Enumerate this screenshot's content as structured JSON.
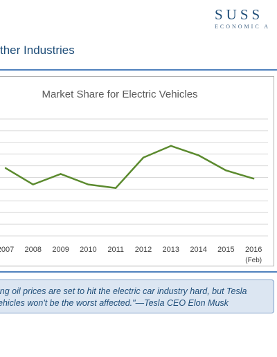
{
  "header": {
    "brand_name": "SUSS",
    "brand_sub": "ECONOMIC A",
    "title": "ther Industries"
  },
  "chart_data": {
    "type": "line",
    "title": "Market Share for Electric Vehicles",
    "categories": [
      "2007",
      "2008",
      "2009",
      "2010",
      "2011",
      "2012",
      "2013",
      "2014",
      "2015",
      "2016"
    ],
    "category_sublabels": [
      "",
      "",
      "",
      "",
      "",
      "",
      "",
      "",
      "",
      "(Feb)"
    ],
    "series": [
      {
        "values": [
          5.8,
          4.4,
          5.3,
          4.4,
          4.1,
          6.7,
          7.7,
          6.9,
          5.6,
          4.9
        ]
      }
    ],
    "ylim": [
      0,
      10
    ],
    "grid": true,
    "colors": {
      "line": "#5b8a2e",
      "grid": "#d9d9d9"
    }
  },
  "quote": {
    "text": "ing oil prices are set to hit the electric car industry hard, but Tesla\nehicles won't be the worst affected.\"—Tesla CEO Elon Musk"
  }
}
